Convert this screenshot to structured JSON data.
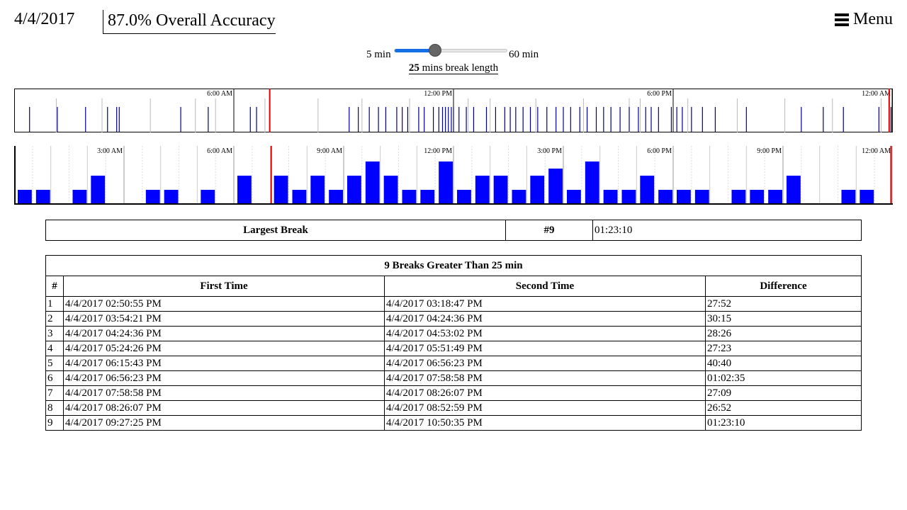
{
  "header": {
    "date": "4/4/2017",
    "accuracy": "87.0% Overall Accuracy",
    "menu_label": "Menu"
  },
  "slider": {
    "min_label": "5 min",
    "max_label": "60 min",
    "min": 5,
    "max": 60,
    "value": 25,
    "value_text": "25",
    "caption": " mins break length",
    "accent": "#1570e5"
  },
  "timeline": {
    "tick_labels": [
      "6:00 AM",
      "12:00 PM",
      "6:00 PM",
      "12:00 AM"
    ],
    "red_line_hours": [
      6.98,
      23.9
    ],
    "event_hours": [
      0.42,
      1.18,
      1.95,
      2.55,
      2.8,
      2.87,
      4.55,
      5.3,
      6.45,
      6.62,
      9.15,
      9.4,
      9.7,
      9.95,
      10.15,
      10.45,
      10.6,
      10.75,
      11.05,
      11.2,
      11.45,
      11.6,
      11.7,
      11.78,
      11.86,
      11.94,
      12.0,
      12.15,
      12.35,
      12.55,
      12.9,
      13.15,
      13.4,
      13.55,
      13.7,
      13.9,
      14.1,
      14.3,
      14.55,
      14.8,
      15.0,
      15.2,
      15.45,
      15.65,
      15.9,
      16.1,
      16.3,
      16.55,
      16.8,
      17.05,
      17.25,
      17.4,
      17.6,
      17.95,
      18.1,
      18.25,
      18.5,
      18.8,
      19.15,
      20.0,
      21.5,
      22.1,
      22.65,
      23.62,
      23.95
    ],
    "gray_hours": [
      1.15,
      2.4,
      3.72,
      4.95,
      5.5,
      6.85,
      8.3,
      9.5,
      10.8,
      12.4,
      13.0,
      14.25,
      15.55,
      16.8,
      17.1,
      18.4,
      19.75,
      21.05,
      22.35,
      23.68
    ],
    "color": "#00008b"
  },
  "histogram": {
    "tick_labels": [
      "3:00 AM",
      "6:00 AM",
      "9:00 AM",
      "12:00 PM",
      "3:00 PM",
      "6:00 PM",
      "9:00 PM",
      "12:00 AM"
    ],
    "red_line_hours": [
      7.02,
      23.95
    ],
    "bin_hours": 0.5,
    "counts": [
      1,
      1,
      0,
      1,
      2,
      0,
      0,
      1,
      1,
      0,
      1,
      0,
      2,
      0,
      2,
      1,
      2,
      1,
      2,
      3,
      2,
      1,
      1,
      3,
      1,
      2,
      2,
      1,
      2,
      2.5,
      1,
      3,
      1,
      1,
      2,
      1,
      1,
      1,
      0,
      1,
      1,
      1,
      2,
      0,
      0,
      1,
      1
    ],
    "color": "#0000ff"
  },
  "largest": {
    "label": "Largest Break",
    "num": "#9",
    "duration": "01:23:10"
  },
  "breaks": {
    "title": "9 Breaks Greater Than 25 min",
    "columns": [
      "#",
      "First Time",
      "Second Time",
      "Difference"
    ],
    "rows": [
      [
        "1",
        "4/4/2017 02:50:55 PM",
        "4/4/2017 03:18:47 PM",
        "27:52"
      ],
      [
        "2",
        "4/4/2017 03:54:21 PM",
        "4/4/2017 04:24:36 PM",
        "30:15"
      ],
      [
        "3",
        "4/4/2017 04:24:36 PM",
        "4/4/2017 04:53:02 PM",
        "28:26"
      ],
      [
        "4",
        "4/4/2017 05:24:26 PM",
        "4/4/2017 05:51:49 PM",
        "27:23"
      ],
      [
        "5",
        "4/4/2017 06:15:43 PM",
        "4/4/2017 06:56:23 PM",
        "40:40"
      ],
      [
        "6",
        "4/4/2017 06:56:23 PM",
        "4/4/2017 07:58:58 PM",
        "01:02:35"
      ],
      [
        "7",
        "4/4/2017 07:58:58 PM",
        "4/4/2017 08:26:07 PM",
        "27:09"
      ],
      [
        "8",
        "4/4/2017 08:26:07 PM",
        "4/4/2017 08:52:59 PM",
        "26:52"
      ],
      [
        "9",
        "4/4/2017 09:27:25 PM",
        "4/4/2017 10:50:35 PM",
        "01:23:10"
      ]
    ]
  }
}
